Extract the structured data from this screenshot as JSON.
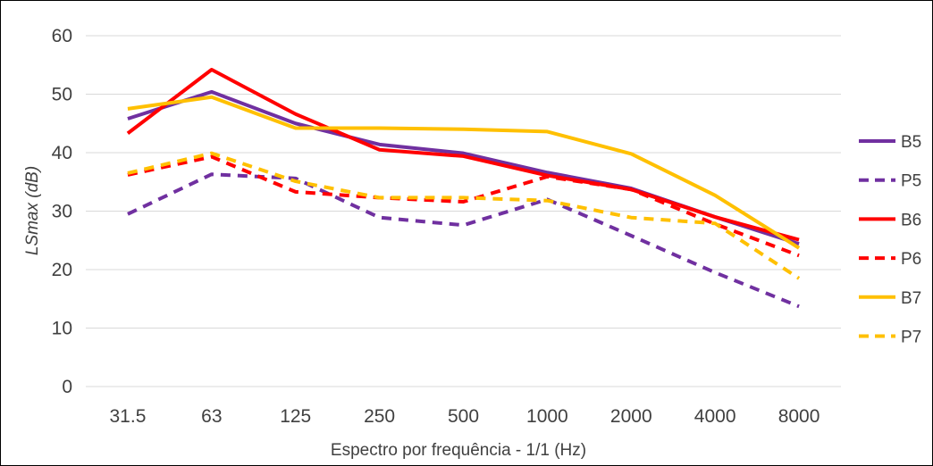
{
  "chart_data": {
    "type": "line",
    "categories": [
      "31.5",
      "63",
      "125",
      "250",
      "500",
      "1000",
      "2000",
      "4000",
      "8000"
    ],
    "xlabel": "Espectro por frequência - 1/1 (Hz)",
    "ylabel": "LSmax (dB)",
    "ylim": [
      0,
      60
    ],
    "yticks": [
      "0",
      "10",
      "20",
      "30",
      "40",
      "50",
      "60"
    ],
    "grid": true,
    "legend_position": "right",
    "series": [
      {
        "name": "B5",
        "color": "#7030A0",
        "dash": "solid",
        "values": [
          45.8,
          50.4,
          45.0,
          41.4,
          39.9,
          36.6,
          33.9,
          29.0,
          24.4
        ]
      },
      {
        "name": "P5",
        "color": "#7030A0",
        "dash": "dashed",
        "values": [
          29.5,
          36.3,
          35.6,
          28.9,
          27.6,
          32.0,
          25.8,
          19.5,
          13.7
        ]
      },
      {
        "name": "B6",
        "color": "#FF0000",
        "dash": "solid",
        "values": [
          43.3,
          54.2,
          46.6,
          40.5,
          39.4,
          36.1,
          33.7,
          29.0,
          25.1
        ]
      },
      {
        "name": "P6",
        "color": "#FF0000",
        "dash": "dashed",
        "values": [
          36.2,
          39.3,
          33.3,
          32.3,
          31.6,
          35.9,
          33.7,
          27.8,
          22.4
        ]
      },
      {
        "name": "B7",
        "color": "#FFC000",
        "dash": "solid",
        "values": [
          47.5,
          49.5,
          44.2,
          44.2,
          44.0,
          43.6,
          39.8,
          32.7,
          23.7
        ]
      },
      {
        "name": "P7",
        "color": "#FFC000",
        "dash": "dashed",
        "values": [
          36.5,
          39.9,
          35.1,
          32.3,
          32.3,
          31.8,
          28.9,
          27.9,
          18.5
        ]
      }
    ]
  }
}
